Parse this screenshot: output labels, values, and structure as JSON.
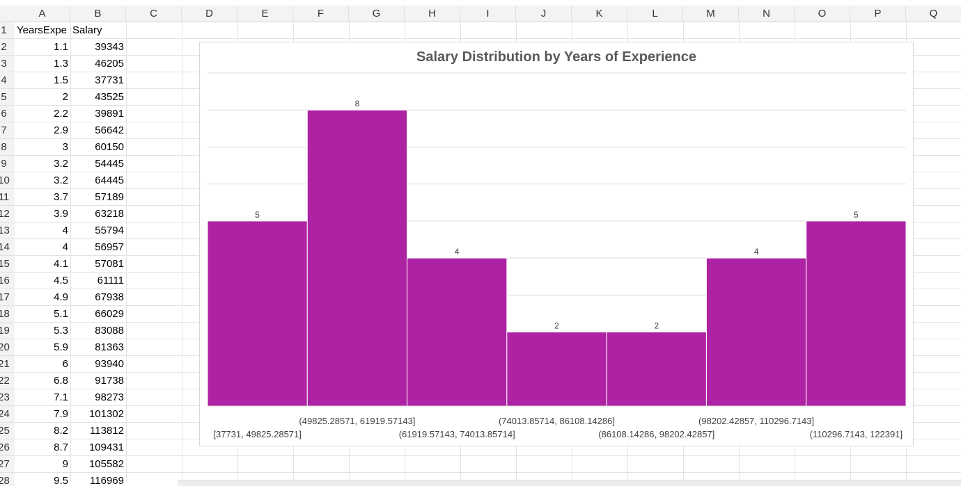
{
  "sheet": {
    "columns": [
      "A",
      "B",
      "C",
      "D",
      "E",
      "F",
      "G",
      "H",
      "I",
      "J",
      "K",
      "L",
      "M",
      "N",
      "O",
      "P",
      "Q"
    ],
    "rows": [
      "1",
      "2",
      "3",
      "4",
      "5",
      "6",
      "7",
      "8",
      "9",
      "10",
      "11",
      "12",
      "13",
      "14",
      "15",
      "16",
      "17",
      "18",
      "19",
      "20",
      "21",
      "22",
      "23",
      "24",
      "25",
      "26",
      "27",
      "28"
    ],
    "header_cells": {
      "a1": "YearsExpe",
      "b1": "Salary"
    },
    "data_rows": [
      [
        "1.1",
        "39343"
      ],
      [
        "1.3",
        "46205"
      ],
      [
        "1.5",
        "37731"
      ],
      [
        "2",
        "43525"
      ],
      [
        "2.2",
        "39891"
      ],
      [
        "2.9",
        "56642"
      ],
      [
        "3",
        "60150"
      ],
      [
        "3.2",
        "54445"
      ],
      [
        "3.2",
        "64445"
      ],
      [
        "3.7",
        "57189"
      ],
      [
        "3.9",
        "63218"
      ],
      [
        "4",
        "55794"
      ],
      [
        "4",
        "56957"
      ],
      [
        "4.1",
        "57081"
      ],
      [
        "4.5",
        "61111"
      ],
      [
        "4.9",
        "67938"
      ],
      [
        "5.1",
        "66029"
      ],
      [
        "5.3",
        "83088"
      ],
      [
        "5.9",
        "81363"
      ],
      [
        "6",
        "93940"
      ],
      [
        "6.8",
        "91738"
      ],
      [
        "7.1",
        "98273"
      ],
      [
        "7.9",
        "101302"
      ],
      [
        "8.2",
        "113812"
      ],
      [
        "8.7",
        "109431"
      ],
      [
        "9",
        "105582"
      ],
      [
        "9.5",
        "116969"
      ]
    ]
  },
  "chart_data": {
    "type": "bar",
    "title": "Salary Distribution by Years of Experience",
    "categories": [
      "[37731, 49825.28571]",
      "(49825.28571, 61919.57143]",
      "(61919.57143, 74013.85714]",
      "(74013.85714, 86108.14286]",
      "(86108.14286, 98202.42857]",
      "(98202.42857, 110296.7143]",
      "(110296.7143, 122391]"
    ],
    "values": [
      5,
      8,
      4,
      2,
      2,
      4,
      5
    ],
    "ylim": [
      0,
      9
    ],
    "grid": true,
    "bar_color": "#ae23a3",
    "data_labels": true
  }
}
